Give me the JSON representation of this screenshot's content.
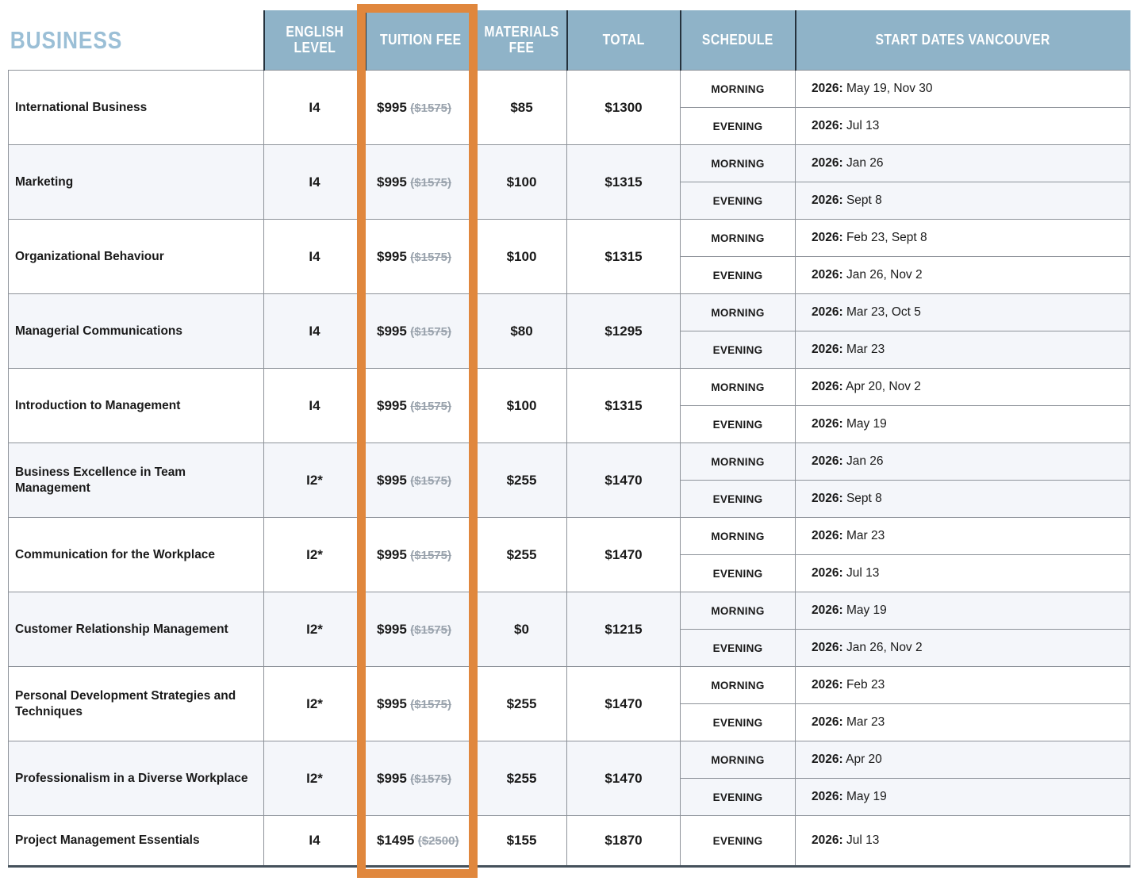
{
  "title": "BUSINESS",
  "columns": {
    "english_level": "ENGLISH\nLEVEL",
    "tuition_fee": "TUITION FEE",
    "materials_fee": "MATERIALS\nFEE",
    "total": "TOTAL",
    "schedule": "SCHEDULE",
    "start_dates": "START DATES VANCOUVER"
  },
  "colors": {
    "header_bg": "#8fb3c8",
    "title_text": "#9bbfd6",
    "highlight_border": "#e0873d",
    "alt_row_bg": "#f4f6fa",
    "strike_text": "#9aa3ad"
  },
  "courses": [
    {
      "name": "International Business",
      "english_level": "I4",
      "tuition_fee": "$995",
      "tuition_fee_original": "($1575)",
      "materials_fee": "$85",
      "total": "$1300",
      "schedules": [
        {
          "label": "MORNING",
          "year": "2026:",
          "dates": "May 19, Nov 30"
        },
        {
          "label": "EVENING",
          "year": "2026:",
          "dates": "Jul 13"
        }
      ]
    },
    {
      "name": "Marketing",
      "english_level": "I4",
      "tuition_fee": "$995",
      "tuition_fee_original": "($1575)",
      "materials_fee": "$100",
      "total": "$1315",
      "schedules": [
        {
          "label": "MORNING",
          "year": "2026:",
          "dates": "Jan 26"
        },
        {
          "label": "EVENING",
          "year": "2026:",
          "dates": "Sept 8"
        }
      ]
    },
    {
      "name": "Organizational Behaviour",
      "english_level": "I4",
      "tuition_fee": "$995",
      "tuition_fee_original": "($1575)",
      "materials_fee": "$100",
      "total": "$1315",
      "schedules": [
        {
          "label": "MORNING",
          "year": "2026:",
          "dates": "Feb 23, Sept 8"
        },
        {
          "label": "EVENING",
          "year": "2026:",
          "dates": "Jan 26, Nov 2"
        }
      ]
    },
    {
      "name": "Managerial Communications",
      "english_level": "I4",
      "tuition_fee": "$995",
      "tuition_fee_original": "($1575)",
      "materials_fee": "$80",
      "total": "$1295",
      "schedules": [
        {
          "label": "MORNING",
          "year": "2026:",
          "dates": "Mar 23, Oct 5"
        },
        {
          "label": "EVENING",
          "year": "2026:",
          "dates": "Mar 23"
        }
      ]
    },
    {
      "name": "Introduction to Management",
      "english_level": "I4",
      "tuition_fee": "$995",
      "tuition_fee_original": "($1575)",
      "materials_fee": "$100",
      "total": "$1315",
      "schedules": [
        {
          "label": "MORNING",
          "year": "2026:",
          "dates": "Apr 20, Nov 2"
        },
        {
          "label": "EVENING",
          "year": "2026:",
          "dates": "May 19"
        }
      ]
    },
    {
      "name": "Business Excellence in Team Management",
      "english_level": "I2*",
      "tuition_fee": "$995",
      "tuition_fee_original": "($1575)",
      "materials_fee": "$255",
      "total": "$1470",
      "schedules": [
        {
          "label": "MORNING",
          "year": "2026:",
          "dates": "Jan 26"
        },
        {
          "label": "EVENING",
          "year": "2026:",
          "dates": "Sept 8"
        }
      ]
    },
    {
      "name": "Communication for the Workplace",
      "english_level": "I2*",
      "tuition_fee": "$995",
      "tuition_fee_original": "($1575)",
      "materials_fee": "$255",
      "total": "$1470",
      "schedules": [
        {
          "label": "MORNING",
          "year": "2026:",
          "dates": "Mar 23"
        },
        {
          "label": "EVENING",
          "year": "2026:",
          "dates": "Jul 13"
        }
      ]
    },
    {
      "name": "Customer Relationship Management",
      "english_level": "I2*",
      "tuition_fee": "$995",
      "tuition_fee_original": "($1575)",
      "materials_fee": "$0",
      "total": "$1215",
      "schedules": [
        {
          "label": "MORNING",
          "year": "2026:",
          "dates": "May 19"
        },
        {
          "label": "EVENING",
          "year": "2026:",
          "dates": "Jan 26, Nov 2"
        }
      ]
    },
    {
      "name": "Personal Development Strategies and Techniques",
      "english_level": "I2*",
      "tuition_fee": "$995",
      "tuition_fee_original": "($1575)",
      "materials_fee": "$255",
      "total": "$1470",
      "schedules": [
        {
          "label": "MORNING",
          "year": "2026:",
          "dates": "Feb 23"
        },
        {
          "label": "EVENING",
          "year": "2026:",
          "dates": "Mar 23"
        }
      ]
    },
    {
      "name": "Professionalism in a Diverse Workplace",
      "english_level": "I2*",
      "tuition_fee": "$995",
      "tuition_fee_original": "($1575)",
      "materials_fee": "$255",
      "total": "$1470",
      "schedules": [
        {
          "label": "MORNING",
          "year": "2026:",
          "dates": "Apr 20"
        },
        {
          "label": "EVENING",
          "year": "2026:",
          "dates": "May 19"
        }
      ]
    },
    {
      "name": "Project Management Essentials",
      "english_level": "I4",
      "tuition_fee": "$1495",
      "tuition_fee_original": "($2500)",
      "materials_fee": "$155",
      "total": "$1870",
      "schedules": [
        {
          "label": "EVENING",
          "year": "2026:",
          "dates": "Jul 13"
        }
      ]
    }
  ]
}
